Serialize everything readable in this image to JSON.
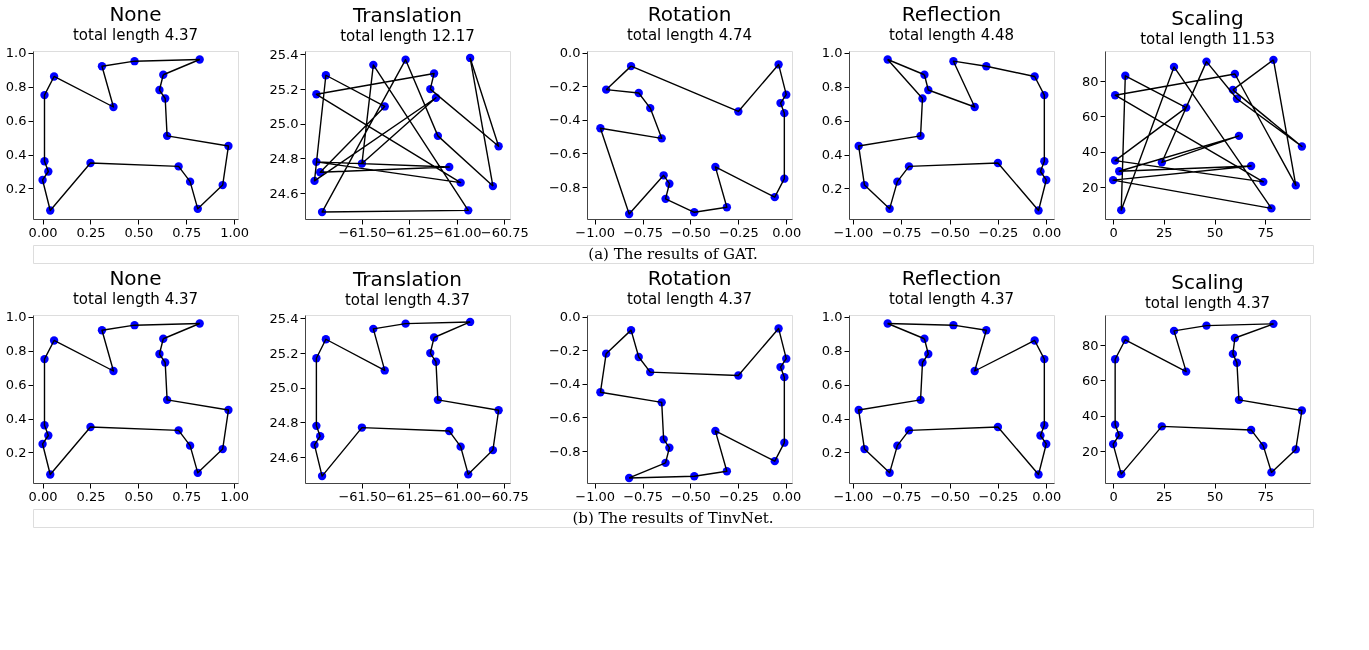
{
  "chart_data": [
    {
      "type": "line",
      "title": "None",
      "subtitle": "total length 4.37",
      "line_style": "solid",
      "grid": false,
      "legend": false,
      "xlim": [
        -0.05,
        1.02
      ],
      "ylim": [
        0.02,
        1.01
      ],
      "xticks": [
        {
          "value": 0,
          "label": "0.00"
        },
        {
          "value": 0.25,
          "label": "0.25"
        },
        {
          "value": 0.5,
          "label": "0.50"
        },
        {
          "value": 0.75,
          "label": "0.75"
        },
        {
          "value": 1,
          "label": "1.00"
        }
      ],
      "yticks": [
        0.2,
        0.4,
        0.6,
        0.8,
        {
          "value": 1,
          "label": "1.0"
        }
      ],
      "series": [
        {
          "type": "scatter",
          "marker": "circle",
          "color": "#0000ff",
          "x": [
            0.82,
            0.48,
            0.31,
            0.37,
            0.06,
            0.01,
            0.01,
            0.03,
            0.0,
            0.04,
            0.25,
            0.71,
            0.77,
            0.81,
            0.94,
            0.97,
            0.65,
            0.64,
            0.61,
            0.63
          ],
          "values": [
            0.96,
            0.95,
            0.92,
            0.68,
            0.86,
            0.75,
            0.36,
            0.3,
            0.25,
            0.07,
            0.35,
            0.33,
            0.24,
            0.08,
            0.22,
            0.45,
            0.51,
            0.73,
            0.78,
            0.87
          ]
        },
        {
          "type": "line",
          "color": "#000000",
          "x": [
            0.82,
            0.48,
            0.31,
            0.37,
            0.06,
            0.01,
            0.01,
            0.03,
            0.0,
            0.04,
            0.25,
            0.71,
            0.77,
            0.81,
            0.94,
            0.97,
            0.65,
            0.64,
            0.61,
            0.63
          ],
          "values": [
            0.96,
            0.95,
            0.92,
            0.68,
            0.86,
            0.75,
            0.36,
            0.3,
            0.25,
            0.07,
            0.35,
            0.33,
            0.24,
            0.08,
            0.22,
            0.45,
            0.51,
            0.73,
            0.78,
            0.87
          ]
        },
        {
          "type": "line",
          "color": "#000000",
          "x": [
            0.63,
            0.82
          ],
          "values": [
            0.87,
            0.96
          ]
        }
      ]
    },
    {
      "type": "line",
      "title": "Translation",
      "subtitle": "total length 12.17",
      "line_style": "solid",
      "grid": false,
      "legend": false,
      "xlim": [
        -61.8,
        -60.72
      ],
      "ylim": [
        24.45,
        25.42
      ],
      "xticks": [
        {
          "value": -61.5,
          "label": "−61.50"
        },
        {
          "value": -61.25,
          "label": "−61.25"
        },
        {
          "value": -61,
          "label": "−61.00"
        },
        {
          "value": -60.75,
          "label": "−60.75"
        }
      ],
      "yticks": [
        24.6,
        24.8,
        {
          "value": 25,
          "label": "25.0"
        },
        25.2,
        25.4
      ],
      "series": [
        {
          "type": "scatter",
          "marker": "circle",
          "color": "#0000ff",
          "x": [
            -60.93,
            -61.27,
            -61.44,
            -61.38,
            -61.69,
            -61.74,
            -61.74,
            -61.72,
            -61.75,
            -61.71,
            -61.5,
            -61.04,
            -60.98,
            -60.94,
            -60.81,
            -60.78,
            -61.1,
            -61.11,
            -61.14,
            -61.12
          ],
          "values": [
            25.38,
            25.37,
            25.34,
            25.1,
            25.28,
            25.17,
            24.78,
            24.72,
            24.67,
            24.49,
            24.77,
            24.75,
            24.66,
            24.5,
            24.64,
            24.87,
            24.93,
            25.15,
            25.2,
            25.29
          ]
        },
        {
          "type": "line",
          "color": "#000000",
          "x": [
            -60.93,
            -60.78,
            -61.14,
            -61.12,
            -61.74,
            -60.98,
            -61.74,
            -61.04,
            -61.72,
            -61.38,
            -61.69,
            -61.75,
            -61.11,
            -61.5,
            -61.44,
            -60.94,
            -61.71,
            -61.27,
            -61.1,
            -60.81
          ],
          "values": [
            25.38,
            24.87,
            25.2,
            25.29,
            25.17,
            24.66,
            24.78,
            24.75,
            24.72,
            25.1,
            25.28,
            24.67,
            25.15,
            24.77,
            25.34,
            24.5,
            24.49,
            25.37,
            24.93,
            24.64
          ]
        },
        {
          "type": "line",
          "color": "#000000",
          "x": [
            -60.81,
            -60.93
          ],
          "values": [
            24.64,
            25.38
          ]
        }
      ]
    },
    {
      "type": "line",
      "title": "Rotation",
      "subtitle": "total length 4.74",
      "line_style": "solid",
      "grid": false,
      "legend": false,
      "annotations": [
        "(a) The results of GAT."
      ],
      "xlim": [
        -1.04,
        0.03
      ],
      "ylim": [
        -0.99,
        0.01
      ],
      "xticks": [
        {
          "value": -1,
          "label": "−1.00"
        },
        {
          "value": -0.75,
          "label": "−0.75"
        },
        {
          "value": -0.5,
          "label": "−0.50"
        },
        {
          "value": -0.25,
          "label": "−0.25"
        },
        {
          "value": 0,
          "label": "0.00"
        }
      ],
      "yticks": [
        {
          "value": -0.8,
          "label": "−0.8"
        },
        {
          "value": -0.6,
          "label": "−0.6"
        },
        {
          "value": -0.4,
          "label": "−0.4"
        },
        {
          "value": -0.2,
          "label": "−0.2"
        },
        {
          "value": 0,
          "label": "0.0"
        }
      ],
      "series": [
        {
          "type": "scatter",
          "marker": "circle",
          "color": "#0000ff",
          "x": [
            -0.82,
            -0.48,
            -0.31,
            -0.37,
            -0.06,
            -0.01,
            -0.01,
            -0.03,
            0,
            -0.04,
            -0.25,
            -0.71,
            -0.77,
            -0.81,
            -0.94,
            -0.97,
            -0.65,
            -0.64,
            -0.61,
            -0.63
          ],
          "values": [
            -0.96,
            -0.95,
            -0.92,
            -0.68,
            -0.86,
            -0.75,
            -0.36,
            -0.3,
            -0.25,
            -0.07,
            -0.35,
            -0.33,
            -0.24,
            -0.08,
            -0.22,
            -0.45,
            -0.51,
            -0.73,
            -0.78,
            -0.87
          ]
        },
        {
          "type": "line",
          "color": "#000000",
          "x": [
            -0.81,
            -0.25,
            -0.04,
            0,
            -0.03,
            -0.01,
            -0.01,
            -0.06,
            -0.37,
            -0.31,
            -0.48,
            -0.63,
            -0.61,
            -0.64,
            -0.82,
            -0.97,
            -0.65,
            -0.71,
            -0.77,
            -0.94
          ],
          "values": [
            -0.08,
            -0.35,
            -0.07,
            -0.25,
            -0.3,
            -0.36,
            -0.75,
            -0.86,
            -0.68,
            -0.92,
            -0.95,
            -0.87,
            -0.78,
            -0.73,
            -0.96,
            -0.45,
            -0.51,
            -0.33,
            -0.24,
            -0.22
          ]
        },
        {
          "type": "line",
          "color": "#000000",
          "x": [
            -0.94,
            -0.81
          ],
          "values": [
            -0.22,
            -0.08
          ]
        }
      ]
    },
    {
      "type": "line",
      "title": "Reflection",
      "subtitle": "total length 4.48",
      "line_style": "solid",
      "grid": false,
      "legend": false,
      "xlim": [
        -1.02,
        0.04
      ],
      "ylim": [
        0.02,
        1.01
      ],
      "xticks": [
        {
          "value": -1,
          "label": "−1.00"
        },
        {
          "value": -0.75,
          "label": "−0.75"
        },
        {
          "value": -0.5,
          "label": "−0.50"
        },
        {
          "value": -0.25,
          "label": "−0.25"
        },
        {
          "value": 0,
          "label": "0.00"
        }
      ],
      "yticks": [
        0.2,
        0.4,
        0.6,
        0.8,
        {
          "value": 1,
          "label": "1.0"
        }
      ],
      "series": [
        {
          "type": "scatter",
          "marker": "circle",
          "color": "#0000ff",
          "x": [
            -0.82,
            -0.48,
            -0.31,
            -0.37,
            -0.06,
            -0.01,
            -0.01,
            -0.03,
            0,
            -0.04,
            -0.25,
            -0.71,
            -0.77,
            -0.81,
            -0.94,
            -0.97,
            -0.65,
            -0.64,
            -0.61,
            -0.63
          ],
          "values": [
            0.96,
            0.95,
            0.92,
            0.68,
            0.86,
            0.75,
            0.36,
            0.3,
            0.25,
            0.07,
            0.35,
            0.33,
            0.24,
            0.08,
            0.22,
            0.45,
            0.51,
            0.73,
            0.78,
            0.87
          ]
        },
        {
          "type": "line",
          "color": "#000000",
          "x": [
            -0.82,
            -0.64,
            -0.65,
            -0.97,
            -0.94,
            -0.81,
            -0.77,
            -0.71,
            -0.25,
            -0.04,
            0,
            -0.03,
            -0.01,
            -0.01,
            -0.06,
            -0.31,
            -0.48,
            -0.37,
            -0.61,
            -0.63
          ],
          "values": [
            0.96,
            0.73,
            0.51,
            0.45,
            0.22,
            0.08,
            0.24,
            0.33,
            0.35,
            0.07,
            0.25,
            0.3,
            0.36,
            0.75,
            0.86,
            0.92,
            0.95,
            0.68,
            0.78,
            0.87
          ]
        },
        {
          "type": "line",
          "color": "#000000",
          "x": [
            -0.63,
            -0.82
          ],
          "values": [
            0.87,
            0.96
          ]
        }
      ]
    },
    {
      "type": "line",
      "title": "Scaling",
      "subtitle": "total length 11.53",
      "line_style": "solid",
      "grid": false,
      "legend": false,
      "xlim": [
        -4,
        97
      ],
      "ylim": [
        2,
        97
      ],
      "xticks": [
        0,
        25,
        50,
        75
      ],
      "yticks": [
        20,
        40,
        60,
        80
      ],
      "series": [
        {
          "type": "scatter",
          "marker": "circle",
          "color": "#0000ff",
          "x": [
            79,
            46,
            30,
            36,
            6,
            1,
            1,
            3,
            0,
            4,
            24,
            68,
            74,
            78,
            90,
            93,
            62,
            61,
            59,
            60
          ],
          "values": [
            92,
            91,
            88,
            65,
            83,
            72,
            35,
            29,
            24,
            7,
            34,
            32,
            23,
            8,
            21,
            43,
            49,
            70,
            75,
            84
          ]
        },
        {
          "type": "line",
          "color": "#000000",
          "x": [
            79,
            90,
            60,
            1,
            74,
            1,
            36,
            6,
            4,
            30,
            78,
            0,
            68,
            3,
            62,
            24,
            46,
            61,
            93,
            59
          ],
          "values": [
            92,
            21,
            84,
            72,
            23,
            35,
            65,
            83,
            7,
            88,
            8,
            24,
            32,
            29,
            49,
            34,
            91,
            70,
            43,
            75
          ]
        },
        {
          "type": "line",
          "color": "#000000",
          "x": [
            59,
            79
          ],
          "values": [
            75,
            92
          ]
        }
      ]
    },
    {
      "type": "line",
      "title": "None",
      "subtitle": "total length 4.37",
      "line_style": "solid",
      "grid": false,
      "legend": false,
      "xlim": [
        -0.05,
        1.02
      ],
      "ylim": [
        0.02,
        1.01
      ],
      "xticks": [
        {
          "value": 0,
          "label": "0.00"
        },
        {
          "value": 0.25,
          "label": "0.25"
        },
        {
          "value": 0.5,
          "label": "0.50"
        },
        {
          "value": 0.75,
          "label": "0.75"
        },
        {
          "value": 1,
          "label": "1.00"
        }
      ],
      "yticks": [
        0.2,
        0.4,
        0.6,
        0.8,
        {
          "value": 1,
          "label": "1.0"
        }
      ],
      "series": [
        {
          "type": "scatter",
          "marker": "circle",
          "color": "#0000ff",
          "x": [
            0.82,
            0.48,
            0.31,
            0.37,
            0.06,
            0.01,
            0.01,
            0.03,
            0.0,
            0.04,
            0.25,
            0.71,
            0.77,
            0.81,
            0.94,
            0.97,
            0.65,
            0.64,
            0.61,
            0.63
          ],
          "values": [
            0.96,
            0.95,
            0.92,
            0.68,
            0.86,
            0.75,
            0.36,
            0.3,
            0.25,
            0.07,
            0.35,
            0.33,
            0.24,
            0.08,
            0.22,
            0.45,
            0.51,
            0.73,
            0.78,
            0.87
          ]
        },
        {
          "type": "line",
          "color": "#000000",
          "x": [
            0.82,
            0.48,
            0.31,
            0.37,
            0.06,
            0.01,
            0.01,
            0.03,
            0.0,
            0.04,
            0.25,
            0.71,
            0.77,
            0.81,
            0.94,
            0.97,
            0.65,
            0.64,
            0.61,
            0.63
          ],
          "values": [
            0.96,
            0.95,
            0.92,
            0.68,
            0.86,
            0.75,
            0.36,
            0.3,
            0.25,
            0.07,
            0.35,
            0.33,
            0.24,
            0.08,
            0.22,
            0.45,
            0.51,
            0.73,
            0.78,
            0.87
          ]
        },
        {
          "type": "line",
          "color": "#000000",
          "x": [
            0.63,
            0.82
          ],
          "values": [
            0.87,
            0.96
          ]
        }
      ]
    },
    {
      "type": "line",
      "title": "Translation",
      "subtitle": "total length 4.37",
      "line_style": "solid",
      "grid": false,
      "legend": false,
      "xlim": [
        -61.8,
        -60.72
      ],
      "ylim": [
        24.45,
        25.42
      ],
      "xticks": [
        {
          "value": -61.5,
          "label": "−61.50"
        },
        {
          "value": -61.25,
          "label": "−61.25"
        },
        {
          "value": -61,
          "label": "−61.00"
        },
        {
          "value": -60.75,
          "label": "−60.75"
        }
      ],
      "yticks": [
        24.6,
        24.8,
        {
          "value": 25,
          "label": "25.0"
        },
        25.2,
        25.4
      ],
      "series": [
        {
          "type": "scatter",
          "marker": "circle",
          "color": "#0000ff",
          "x": [
            -60.93,
            -61.27,
            -61.44,
            -61.38,
            -61.69,
            -61.74,
            -61.74,
            -61.72,
            -61.75,
            -61.71,
            -61.5,
            -61.04,
            -60.98,
            -60.94,
            -60.81,
            -60.78,
            -61.1,
            -61.11,
            -61.14,
            -61.12
          ],
          "values": [
            25.38,
            25.37,
            25.34,
            25.1,
            25.28,
            25.17,
            24.78,
            24.72,
            24.67,
            24.49,
            24.77,
            24.75,
            24.66,
            24.5,
            24.64,
            24.87,
            24.93,
            25.15,
            25.2,
            25.29
          ]
        },
        {
          "type": "line",
          "color": "#000000",
          "x": [
            -60.93,
            -61.27,
            -61.44,
            -61.38,
            -61.69,
            -61.74,
            -61.74,
            -61.72,
            -61.75,
            -61.71,
            -61.5,
            -61.04,
            -60.98,
            -60.94,
            -60.81,
            -60.78,
            -61.1,
            -61.11,
            -61.14,
            -61.12
          ],
          "values": [
            25.38,
            25.37,
            25.34,
            25.1,
            25.28,
            25.17,
            24.78,
            24.72,
            24.67,
            24.49,
            24.77,
            24.75,
            24.66,
            24.5,
            24.64,
            24.87,
            24.93,
            25.15,
            25.2,
            25.29
          ]
        },
        {
          "type": "line",
          "color": "#000000",
          "x": [
            -61.12,
            -60.93
          ],
          "values": [
            25.29,
            25.38
          ]
        }
      ]
    },
    {
      "type": "line",
      "title": "Rotation",
      "subtitle": "total length 4.37",
      "line_style": "solid",
      "grid": false,
      "legend": false,
      "annotations": [
        "(b) The results of TinvNet."
      ],
      "xlim": [
        -1.04,
        0.03
      ],
      "ylim": [
        -0.99,
        0.01
      ],
      "xticks": [
        {
          "value": -1,
          "label": "−1.00"
        },
        {
          "value": -0.75,
          "label": "−0.75"
        },
        {
          "value": -0.5,
          "label": "−0.50"
        },
        {
          "value": -0.25,
          "label": "−0.25"
        },
        {
          "value": 0,
          "label": "0.00"
        }
      ],
      "yticks": [
        {
          "value": -0.8,
          "label": "−0.8"
        },
        {
          "value": -0.6,
          "label": "−0.6"
        },
        {
          "value": -0.4,
          "label": "−0.4"
        },
        {
          "value": -0.2,
          "label": "−0.2"
        },
        {
          "value": 0,
          "label": "0.0"
        }
      ],
      "series": [
        {
          "type": "scatter",
          "marker": "circle",
          "color": "#0000ff",
          "x": [
            -0.82,
            -0.48,
            -0.31,
            -0.37,
            -0.06,
            -0.01,
            -0.01,
            -0.03,
            0,
            -0.04,
            -0.25,
            -0.71,
            -0.77,
            -0.81,
            -0.94,
            -0.97,
            -0.65,
            -0.64,
            -0.61,
            -0.63
          ],
          "values": [
            -0.96,
            -0.95,
            -0.92,
            -0.68,
            -0.86,
            -0.75,
            -0.36,
            -0.3,
            -0.25,
            -0.07,
            -0.35,
            -0.33,
            -0.24,
            -0.08,
            -0.22,
            -0.45,
            -0.51,
            -0.73,
            -0.78,
            -0.87
          ]
        },
        {
          "type": "line",
          "color": "#000000",
          "x": [
            -0.82,
            -0.48,
            -0.31,
            -0.37,
            -0.06,
            -0.01,
            -0.01,
            -0.03,
            0,
            -0.04,
            -0.25,
            -0.71,
            -0.77,
            -0.81,
            -0.94,
            -0.97,
            -0.65,
            -0.64,
            -0.61,
            -0.63
          ],
          "values": [
            -0.96,
            -0.95,
            -0.92,
            -0.68,
            -0.86,
            -0.75,
            -0.36,
            -0.3,
            -0.25,
            -0.07,
            -0.35,
            -0.33,
            -0.24,
            -0.08,
            -0.22,
            -0.45,
            -0.51,
            -0.73,
            -0.78,
            -0.87
          ]
        },
        {
          "type": "line",
          "color": "#000000",
          "x": [
            -0.63,
            -0.82
          ],
          "values": [
            -0.87,
            -0.96
          ]
        }
      ]
    },
    {
      "type": "line",
      "title": "Reflection",
      "subtitle": "total length 4.37",
      "line_style": "solid",
      "grid": false,
      "legend": false,
      "xlim": [
        -1.02,
        0.04
      ],
      "ylim": [
        0.02,
        1.01
      ],
      "xticks": [
        {
          "value": -1,
          "label": "−1.00"
        },
        {
          "value": -0.75,
          "label": "−0.75"
        },
        {
          "value": -0.5,
          "label": "−0.50"
        },
        {
          "value": -0.25,
          "label": "−0.25"
        },
        {
          "value": 0,
          "label": "0.00"
        }
      ],
      "yticks": [
        0.2,
        0.4,
        0.6,
        0.8,
        {
          "value": 1,
          "label": "1.0"
        }
      ],
      "series": [
        {
          "type": "scatter",
          "marker": "circle",
          "color": "#0000ff",
          "x": [
            -0.82,
            -0.48,
            -0.31,
            -0.37,
            -0.06,
            -0.01,
            -0.01,
            -0.03,
            0,
            -0.04,
            -0.25,
            -0.71,
            -0.77,
            -0.81,
            -0.94,
            -0.97,
            -0.65,
            -0.64,
            -0.61,
            -0.63
          ],
          "values": [
            0.96,
            0.95,
            0.92,
            0.68,
            0.86,
            0.75,
            0.36,
            0.3,
            0.25,
            0.07,
            0.35,
            0.33,
            0.24,
            0.08,
            0.22,
            0.45,
            0.51,
            0.73,
            0.78,
            0.87
          ]
        },
        {
          "type": "line",
          "color": "#000000",
          "x": [
            -0.82,
            -0.48,
            -0.31,
            -0.37,
            -0.06,
            -0.01,
            -0.01,
            -0.03,
            0,
            -0.04,
            -0.25,
            -0.71,
            -0.77,
            -0.81,
            -0.94,
            -0.97,
            -0.65,
            -0.64,
            -0.61,
            -0.63
          ],
          "values": [
            0.96,
            0.95,
            0.92,
            0.68,
            0.86,
            0.75,
            0.36,
            0.3,
            0.25,
            0.07,
            0.35,
            0.33,
            0.24,
            0.08,
            0.22,
            0.45,
            0.51,
            0.73,
            0.78,
            0.87
          ]
        },
        {
          "type": "line",
          "color": "#000000",
          "x": [
            -0.63,
            -0.82
          ],
          "values": [
            0.87,
            0.96
          ]
        }
      ]
    },
    {
      "type": "line",
      "title": "Scaling",
      "subtitle": "total length 4.37",
      "line_style": "solid",
      "grid": false,
      "legend": false,
      "xlim": [
        -4,
        97
      ],
      "ylim": [
        2,
        97
      ],
      "xticks": [
        0,
        25,
        50,
        75
      ],
      "yticks": [
        20,
        40,
        60,
        80
      ],
      "series": [
        {
          "type": "scatter",
          "marker": "circle",
          "color": "#0000ff",
          "x": [
            79,
            46,
            30,
            36,
            6,
            1,
            1,
            3,
            0,
            4,
            24,
            68,
            74,
            78,
            90,
            93,
            62,
            61,
            59,
            60
          ],
          "values": [
            92,
            91,
            88,
            65,
            83,
            72,
            35,
            29,
            24,
            7,
            34,
            32,
            23,
            8,
            21,
            43,
            49,
            70,
            75,
            84
          ]
        },
        {
          "type": "line",
          "color": "#000000",
          "x": [
            79,
            46,
            30,
            36,
            6,
            1,
            1,
            3,
            0,
            4,
            24,
            68,
            74,
            78,
            90,
            93,
            62,
            61,
            59,
            60
          ],
          "values": [
            92,
            91,
            88,
            65,
            83,
            72,
            35,
            29,
            24,
            7,
            34,
            32,
            23,
            8,
            21,
            43,
            49,
            70,
            75,
            84
          ]
        },
        {
          "type": "line",
          "color": "#000000",
          "x": [
            60,
            79
          ],
          "values": [
            84,
            92
          ]
        }
      ]
    }
  ]
}
